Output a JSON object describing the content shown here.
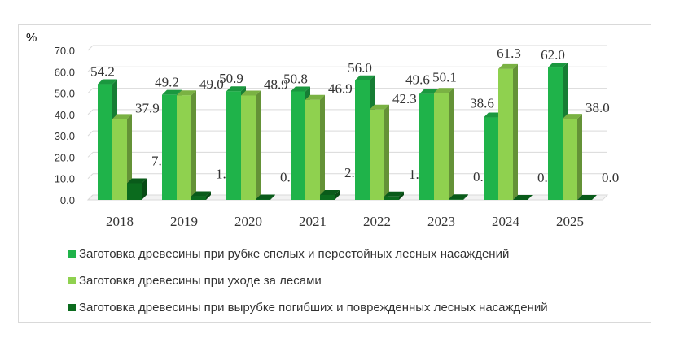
{
  "unit": "%",
  "colors": {
    "series0": "#1fb34a",
    "series1": "#8fd14f",
    "series2": "#0b6b1e"
  },
  "chart_data": {
    "type": "bar",
    "categories": [
      "2018",
      "2019",
      "2020",
      "2021",
      "2022",
      "2023",
      "2024",
      "2025"
    ],
    "series": [
      {
        "name": "Заготовка древесины при рубке спелых и перестойных лесных насаждений",
        "values": [
          54.2,
          49.2,
          50.9,
          50.8,
          56.0,
          49.6,
          38.6,
          62.0
        ]
      },
      {
        "name": "Заготовка древесины при уходе за лесами",
        "values": [
          37.9,
          49.0,
          48.9,
          46.9,
          42.3,
          50.1,
          61.3,
          38.0
        ]
      },
      {
        "name": "Заготовка древесины при вырубке погибших и поврежденных лесных насаждений",
        "values": [
          7.8,
          1.7,
          0.2,
          2.3,
          1.6,
          0.3,
          0.0,
          0.0
        ]
      }
    ],
    "y_ticks": [
      "0.0",
      "10.0",
      "20.0",
      "30.0",
      "40.0",
      "50.0",
      "60.0",
      "70.0"
    ],
    "ylim": [
      0,
      70
    ],
    "ylabel": "%",
    "grid": true,
    "legend_position": "bottom"
  }
}
